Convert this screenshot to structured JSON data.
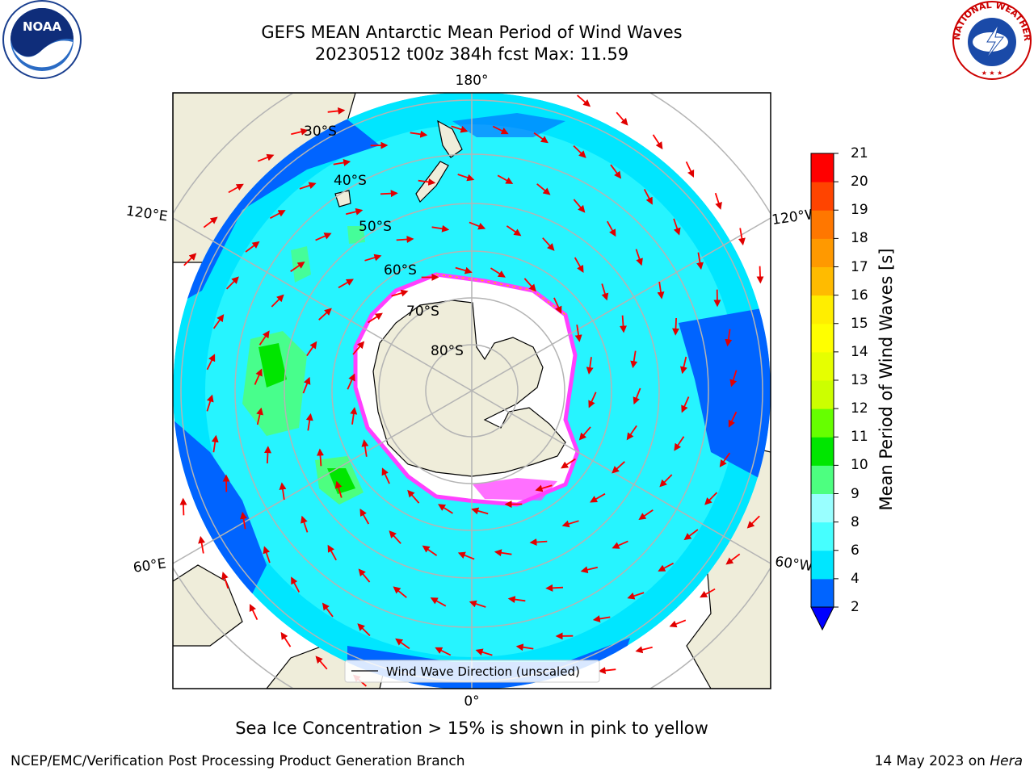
{
  "header": {
    "title_line1": "GEFS MEAN Antarctic Mean Period of Wind Waves",
    "title_line2": "20230512 t00z 384h fcst   Max: 11.59"
  },
  "logos": {
    "left": "NOAA",
    "right": "NATIONAL WEATHER SERVICE"
  },
  "map": {
    "projection": "south-polar-stereographic",
    "longitude_labels": {
      "top": "180°",
      "bottom": "0°",
      "left_upper": "120°E",
      "left_lower": "60°E",
      "right_upper": "120°W",
      "right_lower": "60°W"
    },
    "latitude_labels": [
      "30°S",
      "40°S",
      "50°S",
      "60°S",
      "70°S",
      "80°S"
    ],
    "legend_label": "Wind Wave Direction (unscaled)",
    "colors": {
      "land": "#efedda",
      "sea_ice": "#ffffff",
      "ice_edge": "#ff40ff",
      "wave_arrow": "#ff0000",
      "grid": "#b4b4b4"
    }
  },
  "colorbar": {
    "title": "Mean Period of Wind Waves [s]",
    "ticks": [
      "2",
      "4",
      "6",
      "8",
      "9",
      "10",
      "11",
      "12",
      "13",
      "14",
      "15",
      "16",
      "17",
      "18",
      "19",
      "20",
      "21"
    ],
    "colors": [
      "#0064ff",
      "#00e6ff",
      "#46ffff",
      "#99ffff",
      "#4dff80",
      "#00e600",
      "#66ff00",
      "#ccff00",
      "#e6ff00",
      "#ffff00",
      "#ffee00",
      "#ffbb00",
      "#ff9900",
      "#ff7700",
      "#ff4400",
      "#ff0000"
    ],
    "extend_color": "#0000ff"
  },
  "caption": "Sea Ice Concentration > 15% is shown in pink to yellow",
  "footer": {
    "left": "NCEP/EMC/Verification Post Processing Product Generation Branch",
    "right_date": "14 May 2023 on",
    "right_machine": "Hera"
  }
}
